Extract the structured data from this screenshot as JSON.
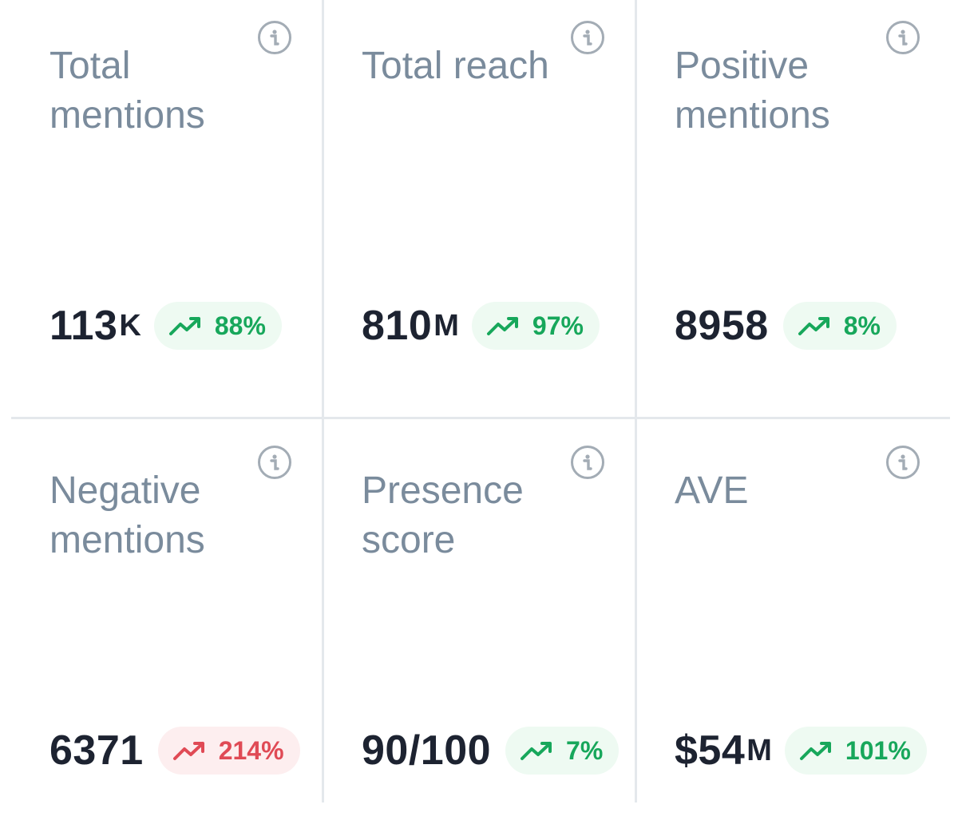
{
  "colors": {
    "positive": "#17a75b",
    "positive_bg": "#eefaf2",
    "negative": "#e04a55",
    "negative_bg": "#fdeeef",
    "title": "#7a8b9c",
    "value": "#1d2331"
  },
  "cards": [
    {
      "title": "Total mentions",
      "value": "113",
      "unit": "K",
      "change": "88%",
      "trend": "up",
      "sentiment": "good",
      "icon": "info-icon"
    },
    {
      "title": "Total reach",
      "value": "810",
      "unit": "M",
      "change": "97%",
      "trend": "up",
      "sentiment": "good",
      "icon": "info-icon"
    },
    {
      "title": "Positive mentions",
      "value": "8958",
      "unit": "",
      "change": "8%",
      "trend": "up",
      "sentiment": "good",
      "icon": "info-icon"
    },
    {
      "title": "Negative mentions",
      "value": "6371",
      "unit": "",
      "change": "214%",
      "trend": "up",
      "sentiment": "bad",
      "icon": "info-icon"
    },
    {
      "title": "Presence score",
      "value": "90/100",
      "unit": "",
      "change": "7%",
      "trend": "up",
      "sentiment": "good",
      "icon": "info-icon"
    },
    {
      "title": "AVE",
      "value": "$54",
      "unit": "M",
      "change": "101%",
      "trend": "up",
      "sentiment": "good",
      "icon": "info-icon"
    }
  ]
}
